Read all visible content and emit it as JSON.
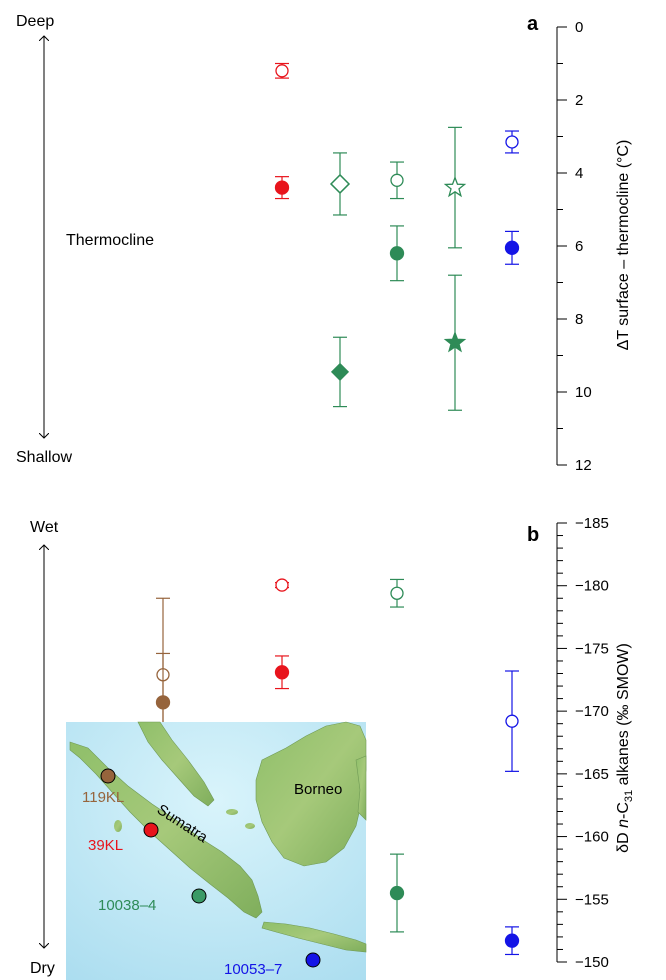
{
  "colors": {
    "red": "#e8141c",
    "green": "#2e8b57",
    "blue": "#1414e6",
    "brown": "#96643c",
    "axis": "#000000"
  },
  "chart_data": [
    {
      "panel": "a",
      "type": "scatter",
      "ylabel": "ΔT surface – thermocline (°C)",
      "ylim": [
        0,
        12
      ],
      "y_inverted": true,
      "yticks": [
        "0",
        "2",
        "4",
        "6",
        "8",
        "10",
        "12"
      ],
      "left_scale": {
        "top": "Deep",
        "bottom": "Shallow",
        "middle": "Thermocline"
      },
      "points": [
        {
          "core": "39KL",
          "color": "red",
          "marker": "circle-open",
          "x_slot": 1,
          "y": 1.2,
          "err": 0.2
        },
        {
          "core": "39KL",
          "color": "red",
          "marker": "circle-filled",
          "x_slot": 1,
          "y": 4.4,
          "err": 0.3
        },
        {
          "core": "10038-4",
          "color": "green",
          "marker": "diamond-open",
          "x_slot": 2,
          "y": 4.3,
          "err": 0.85
        },
        {
          "core": "10038-4",
          "color": "green",
          "marker": "diamond-filled",
          "x_slot": 2,
          "y": 9.45,
          "err": 0.95
        },
        {
          "core": "10038-4",
          "color": "green",
          "marker": "circle-open",
          "x_slot": 3,
          "y": 4.2,
          "err": 0.5
        },
        {
          "core": "10038-4",
          "color": "green",
          "marker": "circle-filled",
          "x_slot": 3,
          "y": 6.2,
          "err": 0.75
        },
        {
          "core": "10038-4",
          "color": "green",
          "marker": "star-open",
          "x_slot": 4,
          "y": 4.4,
          "err": 1.65
        },
        {
          "core": "10038-4",
          "color": "green",
          "marker": "star-filled",
          "x_slot": 4,
          "y": 8.65,
          "err": 1.85
        },
        {
          "core": "10053-7",
          "color": "blue",
          "marker": "circle-open",
          "x_slot": 5,
          "y": 3.15,
          "err": 0.3
        },
        {
          "core": "10053-7",
          "color": "blue",
          "marker": "circle-filled",
          "x_slot": 5,
          "y": 6.05,
          "err": 0.45
        }
      ]
    },
    {
      "panel": "b",
      "type": "scatter",
      "ylabel_parts": {
        "d": "δD ",
        "n": "n",
        "c": "-C",
        "sub": "31",
        "rest": " alkanes (‰ SMOW)"
      },
      "ylim": [
        -185,
        -150
      ],
      "yticks": [
        "−185",
        "−180",
        "−175",
        "−170",
        "−165",
        "−160",
        "−155",
        "−150"
      ],
      "left_scale": {
        "top": "Wet",
        "bottom": "Dry"
      },
      "points": [
        {
          "core": "119KL",
          "color": "brown",
          "marker": "circle-open",
          "x_slot": 0,
          "y": -172.9,
          "err": 6.1
        },
        {
          "core": "119KL",
          "color": "brown",
          "marker": "circle-filled",
          "x_slot": 0,
          "y": -170.7,
          "err": 3.9
        },
        {
          "core": "39KL",
          "color": "red",
          "marker": "circle-open",
          "x_slot": 1,
          "y": -180.05,
          "err": 0.2
        },
        {
          "core": "39KL",
          "color": "red",
          "marker": "circle-filled",
          "x_slot": 1,
          "y": -173.1,
          "err": 1.3
        },
        {
          "core": "10038-4",
          "color": "green",
          "marker": "circle-open",
          "x_slot": 3,
          "y": -179.4,
          "err": 1.1
        },
        {
          "core": "10038-4",
          "color": "green",
          "marker": "circle-filled",
          "x_slot": 3,
          "y": -155.5,
          "err": 3.1
        },
        {
          "core": "10053-7",
          "color": "blue",
          "marker": "circle-open",
          "x_slot": 5,
          "y": -169.2,
          "err": 4.0
        },
        {
          "core": "10053-7",
          "color": "blue",
          "marker": "circle-filled",
          "x_slot": 5,
          "y": -151.7,
          "err": 1.1
        }
      ]
    }
  ],
  "map": {
    "labels": {
      "sumatra": "Sumatra",
      "borneo": "Borneo"
    },
    "sites": [
      {
        "name": "119KL",
        "color": "brown"
      },
      {
        "name": "39KL",
        "color": "red"
      },
      {
        "name": "10038–4",
        "color": "green"
      },
      {
        "name": "10053–7",
        "color": "blue"
      }
    ]
  }
}
